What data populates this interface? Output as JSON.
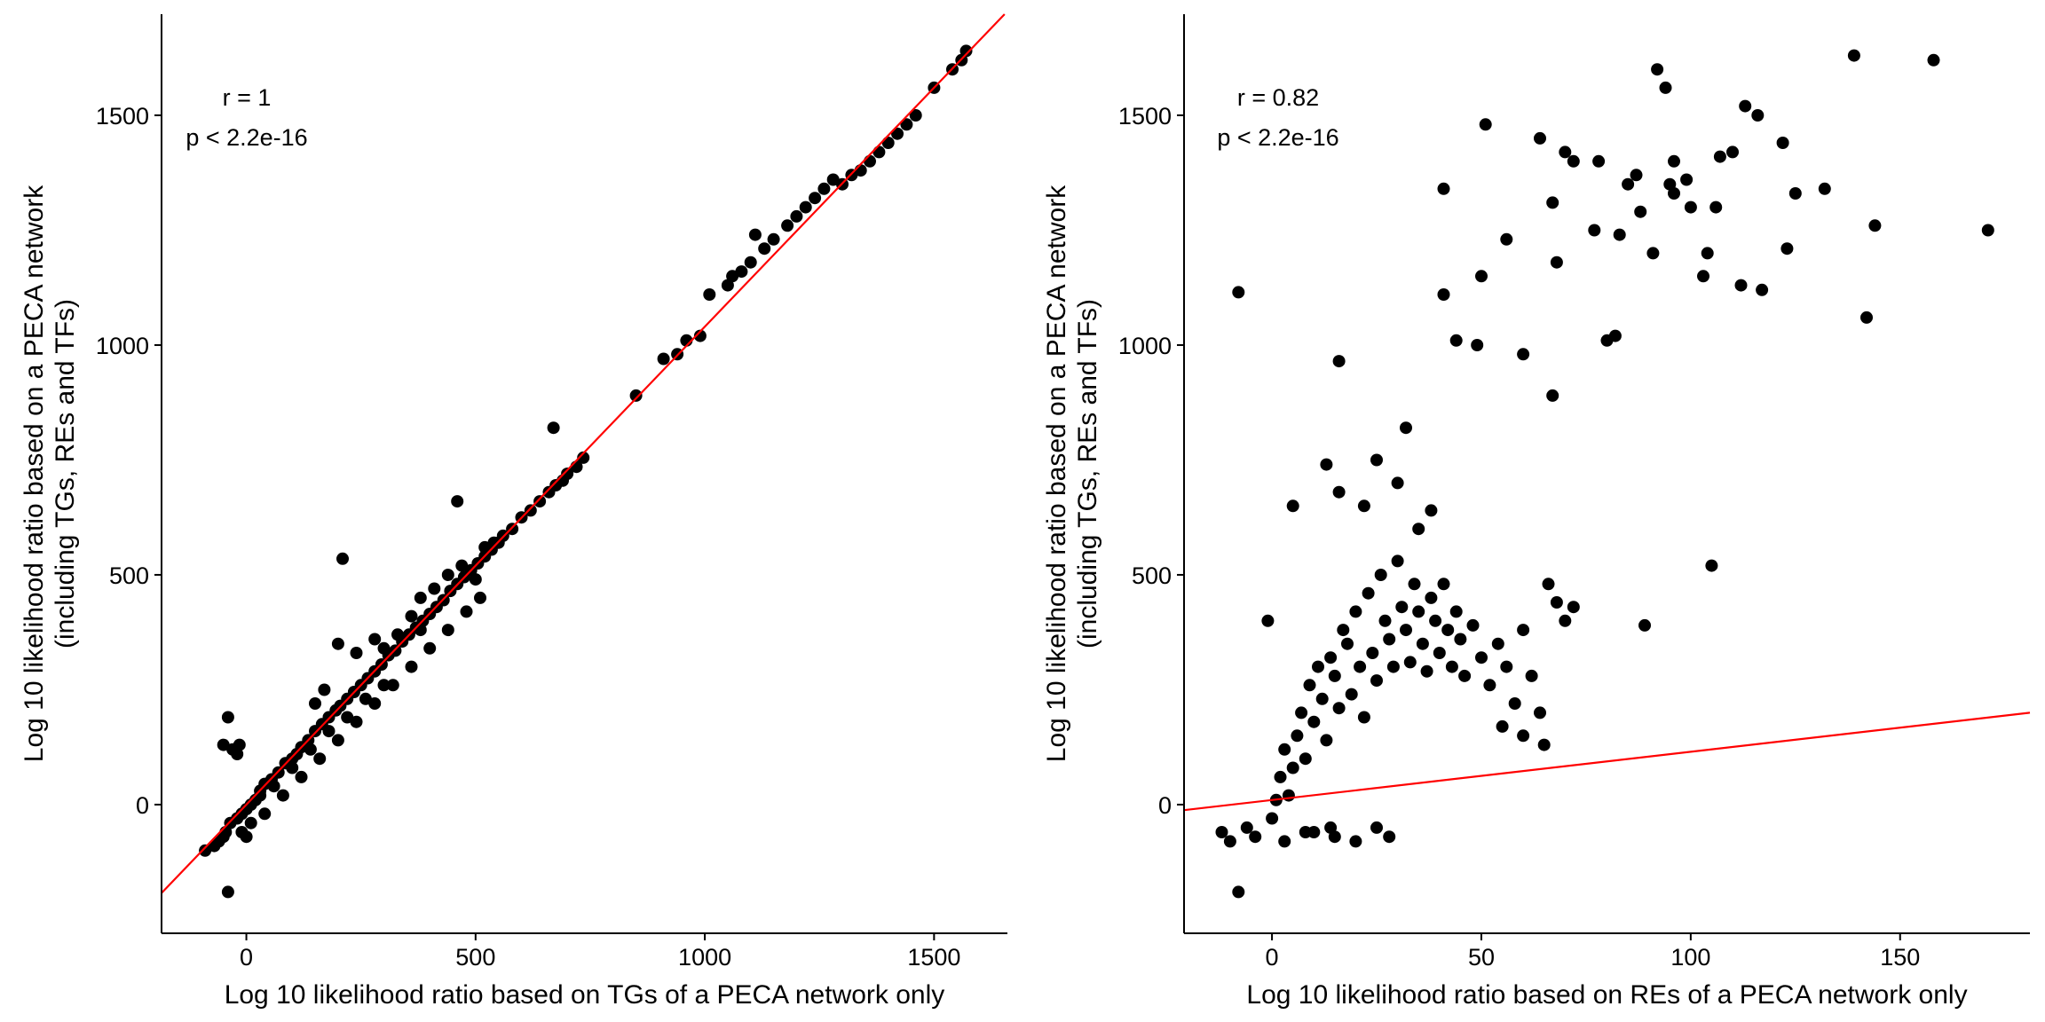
{
  "chart_data": [
    {
      "type": "scatter",
      "xlabel": "Log 10 likelihood ratio based on TGs of a PECA network only",
      "ylabel_line1": "Log 10 likelihood ratio based on a PECA network",
      "ylabel_line2": "(including TGs, REs and TFs)",
      "xlim": [
        -185,
        1660
      ],
      "ylim": [
        -280,
        1720
      ],
      "xticks": [
        0,
        500,
        1000,
        1500
      ],
      "yticks": [
        0,
        500,
        1000,
        1500
      ],
      "annotation_r": "r = 1",
      "annotation_p": "p < 2.2e-16",
      "fit_line": {
        "slope": 1.04,
        "intercept": 0,
        "color": "#ff0000"
      },
      "grid": false,
      "points": [
        [
          -40,
          -190
        ],
        [
          -50,
          130
        ],
        [
          -30,
          120
        ],
        [
          -40,
          190
        ],
        [
          -20,
          110
        ],
        [
          -15,
          130
        ],
        [
          -90,
          -100
        ],
        [
          -70,
          -90
        ],
        [
          -60,
          -80
        ],
        [
          -50,
          -70
        ],
        [
          -45,
          -60
        ],
        [
          -35,
          -40
        ],
        [
          -20,
          -30
        ],
        [
          -10,
          -20
        ],
        [
          0,
          -10
        ],
        [
          10,
          0
        ],
        [
          20,
          10
        ],
        [
          30,
          30
        ],
        [
          40,
          45
        ],
        [
          55,
          55
        ],
        [
          70,
          70
        ],
        [
          85,
          90
        ],
        [
          100,
          100
        ],
        [
          110,
          110
        ],
        [
          120,
          125
        ],
        [
          135,
          140
        ],
        [
          150,
          160
        ],
        [
          165,
          175
        ],
        [
          180,
          190
        ],
        [
          195,
          205
        ],
        [
          205,
          215
        ],
        [
          220,
          230
        ],
        [
          235,
          245
        ],
        [
          250,
          260
        ],
        [
          265,
          275
        ],
        [
          280,
          290
        ],
        [
          295,
          305
        ],
        [
          310,
          325
        ],
        [
          325,
          335
        ],
        [
          340,
          355
        ],
        [
          355,
          370
        ],
        [
          370,
          385
        ],
        [
          385,
          400
        ],
        [
          400,
          415
        ],
        [
          415,
          430
        ],
        [
          430,
          445
        ],
        [
          445,
          465
        ],
        [
          460,
          480
        ],
        [
          475,
          495
        ],
        [
          490,
          510
        ],
        [
          505,
          525
        ],
        [
          520,
          540
        ],
        [
          535,
          555
        ],
        [
          550,
          570
        ],
        [
          560,
          585
        ],
        [
          580,
          600
        ],
        [
          600,
          625
        ],
        [
          620,
          640
        ],
        [
          640,
          660
        ],
        [
          660,
          680
        ],
        [
          675,
          695
        ],
        [
          690,
          705
        ],
        [
          700,
          720
        ],
        [
          720,
          735
        ],
        [
          735,
          755
        ],
        [
          210,
          535
        ],
        [
          460,
          660
        ],
        [
          670,
          820
        ],
        [
          200,
          350
        ],
        [
          150,
          220
        ],
        [
          170,
          250
        ],
        [
          240,
          330
        ],
        [
          280,
          360
        ],
        [
          300,
          340
        ],
        [
          330,
          370
        ],
        [
          360,
          410
        ],
        [
          380,
          450
        ],
        [
          410,
          470
        ],
        [
          440,
          500
        ],
        [
          470,
          520
        ],
        [
          500,
          490
        ],
        [
          520,
          560
        ],
        [
          540,
          570
        ],
        [
          380,
          380
        ],
        [
          300,
          260
        ],
        [
          260,
          230
        ],
        [
          220,
          190
        ],
        [
          180,
          160
        ],
        [
          140,
          120
        ],
        [
          100,
          80
        ],
        [
          60,
          40
        ],
        [
          30,
          20
        ],
        [
          10,
          -40
        ],
        [
          -10,
          -60
        ],
        [
          0,
          -70
        ],
        [
          40,
          -20
        ],
        [
          80,
          20
        ],
        [
          120,
          60
        ],
        [
          160,
          100
        ],
        [
          200,
          140
        ],
        [
          240,
          180
        ],
        [
          280,
          220
        ],
        [
          320,
          260
        ],
        [
          360,
          300
        ],
        [
          400,
          340
        ],
        [
          440,
          380
        ],
        [
          480,
          420
        ],
        [
          510,
          450
        ],
        [
          850,
          890
        ],
        [
          910,
          970
        ],
        [
          940,
          980
        ],
        [
          960,
          1010
        ],
        [
          990,
          1020
        ],
        [
          1010,
          1110
        ],
        [
          1050,
          1130
        ],
        [
          1060,
          1150
        ],
        [
          1080,
          1160
        ],
        [
          1100,
          1180
        ],
        [
          1110,
          1240
        ],
        [
          1130,
          1210
        ],
        [
          1150,
          1230
        ],
        [
          1180,
          1260
        ],
        [
          1200,
          1280
        ],
        [
          1220,
          1300
        ],
        [
          1240,
          1320
        ],
        [
          1260,
          1340
        ],
        [
          1280,
          1360
        ],
        [
          1300,
          1350
        ],
        [
          1320,
          1370
        ],
        [
          1340,
          1380
        ],
        [
          1360,
          1400
        ],
        [
          1380,
          1420
        ],
        [
          1400,
          1440
        ],
        [
          1420,
          1460
        ],
        [
          1440,
          1480
        ],
        [
          1460,
          1500
        ],
        [
          1500,
          1560
        ],
        [
          1540,
          1600
        ],
        [
          1560,
          1620
        ],
        [
          1570,
          1640
        ]
      ]
    },
    {
      "type": "scatter",
      "xlabel": "Log 10 likelihood ratio based on REs of a PECA network only",
      "ylabel_line1": "Log 10 likelihood ratio based on a PECA network",
      "ylabel_line2": "(including TGs, REs and TFs)",
      "xlim": [
        -21,
        181
      ],
      "ylim": [
        -280,
        1720
      ],
      "xticks": [
        0,
        50,
        100,
        150
      ],
      "yticks": [
        0,
        500,
        1000,
        1500
      ],
      "annotation_r": "r = 0.82",
      "annotation_p": "p < 2.2e-16",
      "fit_line": {
        "slope": 1.05,
        "intercept": 10,
        "color": "#ff0000"
      },
      "grid": false,
      "points": [
        [
          -8,
          1115
        ],
        [
          -8,
          -190
        ],
        [
          -12,
          -60
        ],
        [
          -10,
          -80
        ],
        [
          -6,
          -50
        ],
        [
          -4,
          -70
        ],
        [
          -1,
          400
        ],
        [
          0,
          -30
        ],
        [
          1,
          10
        ],
        [
          2,
          60
        ],
        [
          3,
          120
        ],
        [
          4,
          20
        ],
        [
          5,
          80
        ],
        [
          6,
          150
        ],
        [
          7,
          200
        ],
        [
          8,
          100
        ],
        [
          9,
          260
        ],
        [
          10,
          180
        ],
        [
          11,
          300
        ],
        [
          12,
          230
        ],
        [
          13,
          140
        ],
        [
          14,
          320
        ],
        [
          15,
          280
        ],
        [
          16,
          210
        ],
        [
          17,
          380
        ],
        [
          18,
          350
        ],
        [
          19,
          240
        ],
        [
          20,
          420
        ],
        [
          21,
          300
        ],
        [
          22,
          190
        ],
        [
          23,
          460
        ],
        [
          24,
          330
        ],
        [
          25,
          270
        ],
        [
          26,
          500
        ],
        [
          27,
          400
        ],
        [
          28,
          360
        ],
        [
          29,
          300
        ],
        [
          30,
          530
        ],
        [
          31,
          430
        ],
        [
          32,
          380
        ],
        [
          33,
          310
        ],
        [
          34,
          480
        ],
        [
          35,
          420
        ],
        [
          36,
          350
        ],
        [
          37,
          290
        ],
        [
          38,
          450
        ],
        [
          39,
          400
        ],
        [
          40,
          330
        ],
        [
          41,
          480
        ],
        [
          42,
          380
        ],
        [
          43,
          300
        ],
        [
          44,
          420
        ],
        [
          45,
          360
        ],
        [
          46,
          280
        ],
        [
          48,
          390
        ],
        [
          50,
          320
        ],
        [
          52,
          260
        ],
        [
          54,
          350
        ],
        [
          56,
          300
        ],
        [
          58,
          220
        ],
        [
          60,
          380
        ],
        [
          62,
          280
        ],
        [
          64,
          200
        ],
        [
          66,
          480
        ],
        [
          68,
          440
        ],
        [
          70,
          400
        ],
        [
          72,
          430
        ],
        [
          65,
          130
        ],
        [
          60,
          150
        ],
        [
          55,
          170
        ],
        [
          13,
          740
        ],
        [
          16,
          680
        ],
        [
          22,
          650
        ],
        [
          25,
          750
        ],
        [
          30,
          700
        ],
        [
          32,
          820
        ],
        [
          35,
          600
        ],
        [
          38,
          640
        ],
        [
          5,
          650
        ],
        [
          10,
          -60
        ],
        [
          15,
          -70
        ],
        [
          20,
          -80
        ],
        [
          25,
          -50
        ],
        [
          28,
          -70
        ],
        [
          14,
          -50
        ],
        [
          8,
          -60
        ],
        [
          3,
          -80
        ],
        [
          16,
          965
        ],
        [
          41,
          1340
        ],
        [
          51,
          1480
        ],
        [
          56,
          1230
        ],
        [
          64,
          1450
        ],
        [
          67,
          1310
        ],
        [
          70,
          1420
        ],
        [
          72,
          1400
        ],
        [
          78,
          1400
        ],
        [
          85,
          1350
        ],
        [
          88,
          1290
        ],
        [
          92,
          1600
        ],
        [
          94,
          1560
        ],
        [
          96,
          1330
        ],
        [
          100,
          1300
        ],
        [
          104,
          1200
        ],
        [
          110,
          1420
        ],
        [
          113,
          1520
        ],
        [
          122,
          1440
        ],
        [
          125,
          1330
        ],
        [
          132,
          1340
        ],
        [
          139,
          1630
        ],
        [
          144,
          1260
        ],
        [
          158,
          1620
        ],
        [
          171,
          1250
        ],
        [
          41,
          1110
        ],
        [
          44,
          1010
        ],
        [
          49,
          1000
        ],
        [
          50,
          1150
        ],
        [
          60,
          980
        ],
        [
          68,
          1180
        ],
        [
          67,
          890
        ],
        [
          80,
          1010
        ],
        [
          82,
          1020
        ],
        [
          96,
          1400
        ],
        [
          103,
          1150
        ],
        [
          107,
          1410
        ],
        [
          112,
          1130
        ],
        [
          117,
          1120
        ],
        [
          123,
          1210
        ],
        [
          142,
          1060
        ],
        [
          89,
          390
        ],
        [
          105,
          520
        ],
        [
          77,
          1250
        ],
        [
          83,
          1240
        ],
        [
          87,
          1370
        ],
        [
          91,
          1200
        ],
        [
          95,
          1350
        ],
        [
          99,
          1360
        ],
        [
          106,
          1300
        ],
        [
          116,
          1500
        ]
      ]
    }
  ]
}
